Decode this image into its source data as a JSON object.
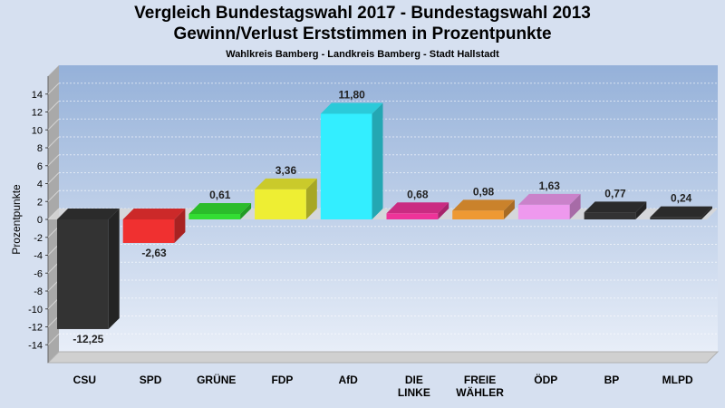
{
  "chart_data": {
    "type": "bar",
    "title": "Vergleich Bundestagswahl 2017 - Bundestagswahl 2013",
    "title2": "Gewinn/Verlust Erststimmen in Prozentpunkte",
    "subtitle": "Wahlkreis Bamberg - Landkreis Bamberg - Stadt Hallstadt",
    "ylabel": "Prozentpunkte",
    "xlabel": "",
    "ylim": [
      -16,
      16
    ],
    "yticks": [
      -14,
      -12,
      -10,
      -8,
      -6,
      -4,
      -2,
      0,
      2,
      4,
      6,
      8,
      10,
      12,
      14
    ],
    "ytick_labels": [
      "-14",
      "-12",
      "-10",
      "-8",
      "-6",
      "-4",
      "-2",
      "0",
      "2",
      "4",
      "6",
      "8",
      "10",
      "12",
      "14"
    ],
    "grid": true,
    "categories": [
      [
        "CSU"
      ],
      [
        "SPD"
      ],
      [
        "GRÜNE"
      ],
      [
        "FDP"
      ],
      [
        "AfD"
      ],
      [
        "DIE",
        "LINKE"
      ],
      [
        "FREIE",
        "WÄHLER"
      ],
      [
        "ÖDP"
      ],
      [
        "BP"
      ],
      [
        "MLPD"
      ]
    ],
    "values": [
      -12.25,
      -2.63,
      0.61,
      3.36,
      11.8,
      0.68,
      0.98,
      1.63,
      0.77,
      0.24
    ],
    "value_labels": [
      "-12,25",
      "-2,63",
      "0,61",
      "3,36",
      "11,80",
      "0,68",
      "0,98",
      "1,63",
      "0,77",
      "0,24"
    ],
    "colors": [
      "#333333",
      "#f03030",
      "#33dd33",
      "#eeee33",
      "#33eeff",
      "#ee3399",
      "#ee9933",
      "#ee99ee",
      "#333333",
      "#333333"
    ],
    "plot_background": [
      "#95b1d9",
      "#e8eef8"
    ]
  }
}
